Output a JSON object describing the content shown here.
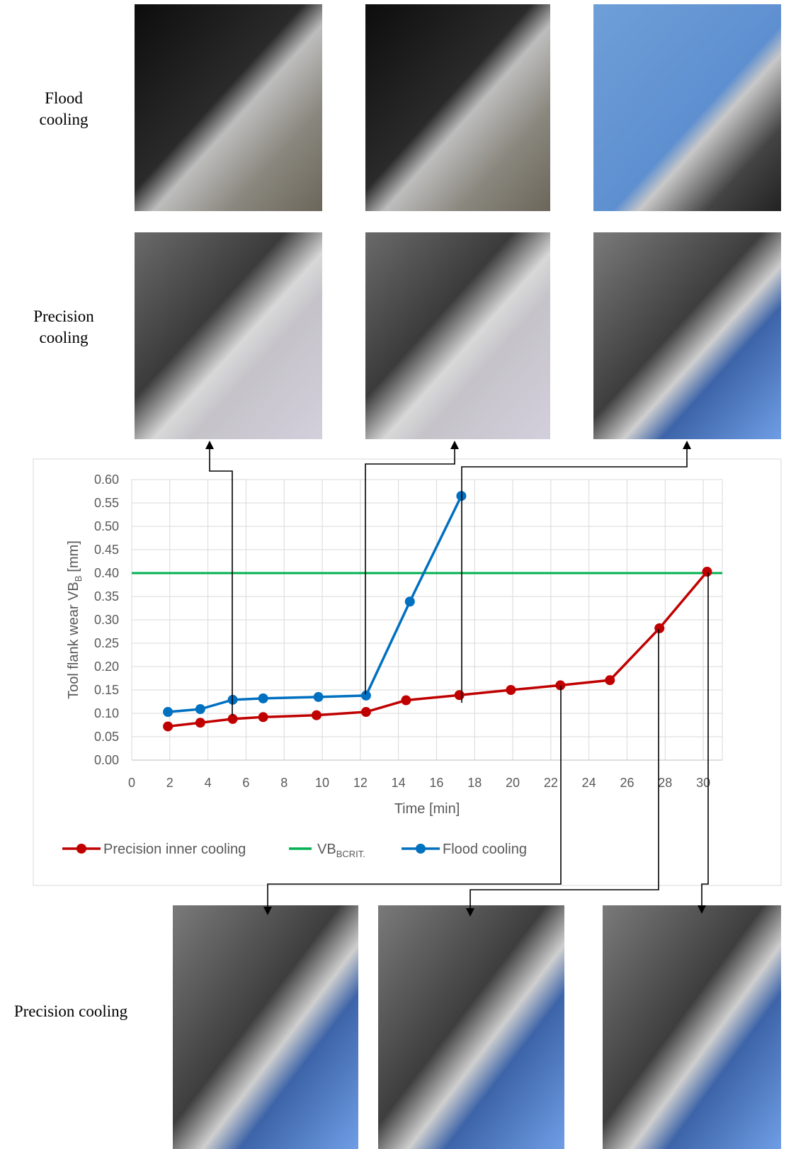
{
  "row_labels": [
    [
      "Flood",
      "cooling"
    ],
    [
      "Precision",
      "cooling"
    ]
  ],
  "bottom_label": "Precision cooling",
  "chart_data": {
    "type": "line",
    "x_label": "Time [min]",
    "y_label": {
      "main": "Tool flank wear VB",
      "sub": "B",
      "unit": "[mm]"
    },
    "xlim": [
      0,
      31
    ],
    "ylim": [
      0,
      0.6
    ],
    "xticks": [
      0,
      2,
      4,
      6,
      8,
      10,
      12,
      14,
      16,
      18,
      20,
      22,
      24,
      26,
      28,
      30
    ],
    "yticks": [
      {
        "value": 0,
        "label": "0.00"
      },
      {
        "value": 0.05,
        "label": "0.05"
      },
      {
        "value": 0.1,
        "label": "0.10"
      },
      {
        "value": 0.15,
        "label": "0.15"
      },
      {
        "value": 0.2,
        "label": "0.20"
      },
      {
        "value": 0.25,
        "label": "0.25"
      },
      {
        "value": 0.3,
        "label": "0.30"
      },
      {
        "value": 0.35,
        "label": "0.35"
      },
      {
        "value": 0.4,
        "label": "0.40"
      },
      {
        "value": 0.45,
        "label": "0.45"
      },
      {
        "value": 0.5,
        "label": "0.50"
      },
      {
        "value": 0.55,
        "label": "0.55"
      },
      {
        "value": 0.6,
        "label": "0.60"
      }
    ],
    "grid": true,
    "series": [
      {
        "name": "Precision inner cooling",
        "color": "#c00000",
        "x": [
          1.9,
          3.6,
          5.3,
          6.9,
          9.7,
          12.3,
          14.4,
          17.2,
          19.9,
          22.5,
          25.1,
          27.7,
          30.2
        ],
        "values": [
          0.072,
          0.08,
          0.088,
          0.092,
          0.096,
          0.103,
          0.128,
          0.139,
          0.15,
          0.16,
          0.171,
          0.282,
          0.403
        ]
      },
      {
        "name": "Flood cooling",
        "color": "#0070c0",
        "x": [
          1.9,
          3.6,
          5.3,
          6.9,
          9.8,
          12.3,
          14.6,
          17.3
        ],
        "values": [
          0.103,
          0.109,
          0.129,
          0.132,
          0.135,
          0.138,
          0.339,
          0.565
        ]
      }
    ],
    "reference_line": {
      "name": "VB",
      "name_sub": "BCRIT.",
      "value": 0.4,
      "color": "#00b050"
    }
  }
}
